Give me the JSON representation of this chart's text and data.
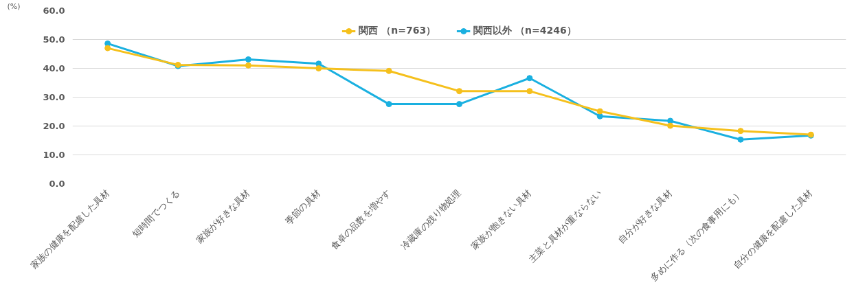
{
  "chart_data": {
    "type": "line",
    "ylabel": "(%)",
    "categories": [
      "家族の健康を配慮した具材",
      "短時間でつくる",
      "家族が好きな具材",
      "季節の具材",
      "食卓の品数を増やす",
      "冷蔵庫の残り物処理",
      "家族が飽きない具材",
      "主菜と具材が重ならない",
      "自分が好きな具材",
      "多めに作る（次の食事用にも）",
      "自分の健康を配慮した具材"
    ],
    "series": [
      {
        "name": "関西 （n=763）",
        "color": "#f5c01c",
        "values": [
          47.0,
          41.2,
          41.0,
          40.0,
          39.1,
          32.1,
          32.1,
          25.1,
          20.1,
          18.3,
          17.0
        ]
      },
      {
        "name": "関西以外 （n=4246）",
        "color": "#1ab0e0",
        "values": [
          48.6,
          40.8,
          43.1,
          41.6,
          27.6,
          27.6,
          36.6,
          23.4,
          21.8,
          15.3,
          16.7
        ]
      }
    ],
    "ylim": [
      0,
      60
    ],
    "yticks": [
      {
        "value": 0,
        "label": "0.0"
      },
      {
        "value": 10,
        "label": "10.0"
      },
      {
        "value": 20,
        "label": "20.0"
      },
      {
        "value": 30,
        "label": "30.0"
      },
      {
        "value": 40,
        "label": "40.0"
      },
      {
        "value": 50,
        "label": "50.0"
      },
      {
        "value": 60,
        "label": "60.0"
      }
    ],
    "grid": "y",
    "legend": "top",
    "marker": "circle",
    "line_style": "solid"
  }
}
